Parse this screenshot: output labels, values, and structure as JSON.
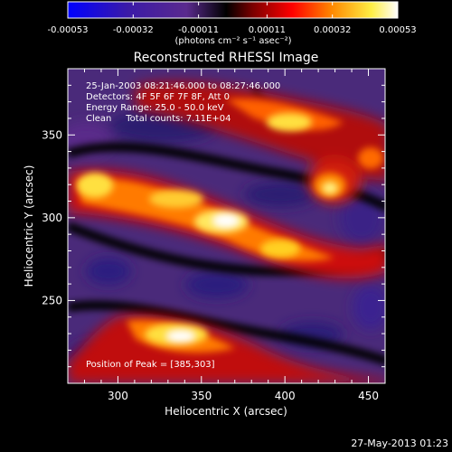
{
  "colorbar": {
    "tick_labels": [
      "-0.00053",
      "-0.00032",
      "-0.00011",
      "0.00011",
      "0.00032",
      "0.00053"
    ],
    "tick_values": [
      -0.00053,
      -0.00032,
      -0.00011,
      0.00011,
      0.00032,
      0.00053
    ],
    "range": [
      -0.00053,
      0.00053
    ],
    "units_label": "(photons cm⁻² s⁻¹ asec⁻²)",
    "colors": [
      "#0000ff",
      "#3a1aa8",
      "#5a2a8e",
      "#000000",
      "#7a0000",
      "#ff0000",
      "#ff8800",
      "#ffee44",
      "#ffffff"
    ]
  },
  "image": {
    "title": "Reconstructed RHESSI Image",
    "info_lines": [
      "25-Jan-2003 08:21:46.000 to 08:27:46.000",
      "Detectors: 4F 5F 6F 7F 8F, Att 0",
      "Energy Range: 25.0 - 50.0 keV",
      "Clean     Total counts: 7.11E+04"
    ],
    "peak_label": "Position of Peak = [385,303]",
    "x_axis": {
      "label": "Heliocentric X (arcsec)",
      "range": [
        270,
        460
      ],
      "tick_values": [
        300,
        350,
        400,
        450
      ],
      "tick_labels": [
        "300",
        "350",
        "400",
        "450"
      ]
    },
    "y_axis": {
      "label": "Heliocentric Y (arcsec)",
      "range": [
        200,
        390
      ],
      "tick_values": [
        250,
        300,
        350
      ],
      "tick_labels": [
        "250",
        "300",
        "350"
      ]
    }
  },
  "footer": {
    "timestamp": "27-May-2013 01:23"
  }
}
